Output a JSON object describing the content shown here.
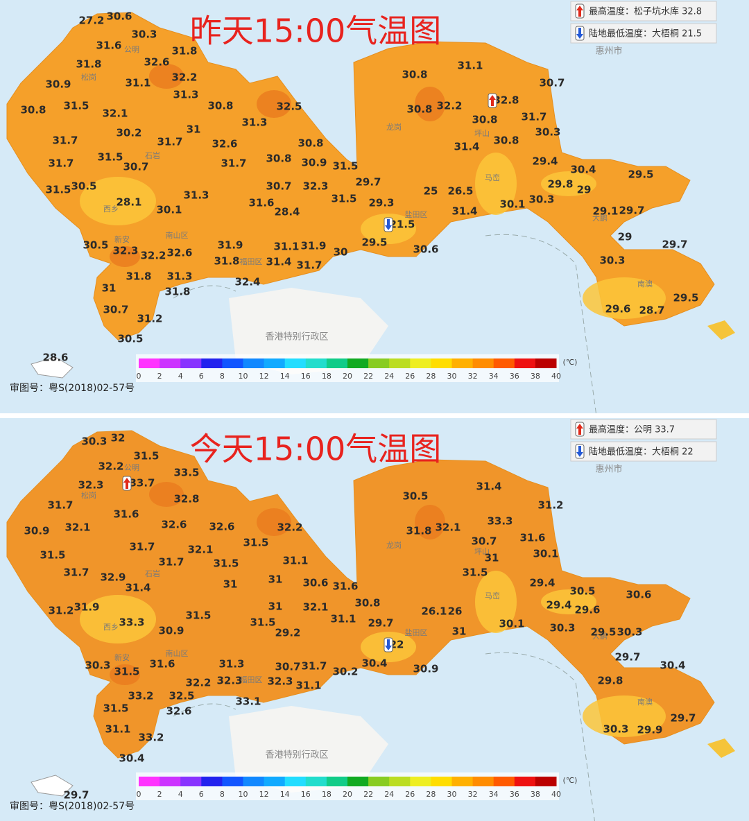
{
  "panels": [
    {
      "title": "昨天15:00气温图",
      "max_label": "最高温度：松子坑水库 32.8",
      "min_label": "陆地最低温度：大梧桐 21.5",
      "readings": [
        27.2,
        30.6,
        30.3,
        31.6,
        31.8,
        31.8,
        32.6,
        32.2,
        31.1,
        31.3,
        30.9,
        30.8,
        31.5,
        32.1,
        30.8,
        32.5,
        31.3,
        31,
        30.2,
        31.7,
        31.7,
        32.6,
        30.8,
        31.5,
        30.7,
        31.7,
        31.7,
        30.8,
        30.9,
        31.5,
        31.5,
        30.5,
        28.1,
        31.3,
        30.7,
        32.3,
        29.7,
        29.3,
        31.5,
        30.1,
        31.6,
        28.4,
        30.5,
        32.3,
        32.2,
        32.6,
        31.9,
        31.1,
        31.9,
        30,
        29.5,
        21.5,
        30.6,
        31.8,
        31.4,
        31.7,
        31.8,
        31.3,
        31,
        31.8,
        32.4,
        30.7,
        31.2,
        30.5,
        28.6,
        30.8,
        31.1,
        32.8,
        30.7,
        30.8,
        32.2,
        30.8,
        31.7,
        30.3,
        31.4,
        30.8,
        29.4,
        30.4,
        29.5,
        29.8,
        29,
        25,
        26.5,
        31.4,
        30.1,
        30.3,
        29.1,
        29.7,
        29,
        29.7,
        30.3,
        29.6,
        28.7,
        29.5
      ]
    },
    {
      "title": "今天15:00气温图",
      "max_label": "最高温度：公明 33.7",
      "min_label": "陆地最低温度：大梧桐 22",
      "readings": [
        30.3,
        32,
        31.5,
        33.5,
        32.2,
        32.3,
        33.7,
        32.8,
        31.7,
        31.6,
        32.1,
        32.6,
        32.6,
        32.2,
        30.9,
        31.7,
        32.1,
        31.5,
        31.5,
        31.7,
        32.9,
        31.7,
        31.5,
        31.1,
        31,
        31,
        30.6,
        31.6,
        31.4,
        31.2,
        31.9,
        33.3,
        31.5,
        31,
        32.1,
        31.1,
        31.5,
        30.9,
        29.2,
        30.3,
        31.5,
        31.6,
        31.3,
        30.7,
        31.7,
        30.2,
        32.2,
        32.3,
        32.3,
        31.1,
        32.5,
        33.2,
        33.1,
        31.5,
        32.6,
        31.1,
        33.2,
        30.4,
        29.7,
        30.5,
        31.4,
        31.2,
        33.3,
        31.8,
        32.1,
        30.7,
        31.6,
        31,
        30.1,
        31.5,
        29.4,
        30.5,
        30.6,
        29.4,
        29.6,
        26.1,
        26,
        31,
        30.1,
        30.8,
        29.7,
        22,
        30.4,
        30.9,
        30.3,
        29.5,
        30.3,
        29.7,
        30.4,
        29.8,
        30.3,
        29.9,
        29.7
      ]
    }
  ],
  "districts": [
    "公明",
    "松岗",
    "西乡",
    "南山区",
    "新安",
    "福田区",
    "龙岗",
    "坪山",
    "盐田区",
    "马峦",
    "南澳",
    "大鹏",
    "石岩"
  ],
  "huizhou": "惠州市",
  "hongkong": "香港特别行政区",
  "map_number": "审图号：粤S(2018)02-57号",
  "legend": {
    "unit": "(℃)",
    "ticks": [
      0,
      2,
      4,
      6,
      8,
      10,
      12,
      14,
      16,
      18,
      20,
      22,
      24,
      26,
      28,
      30,
      32,
      34,
      36,
      38,
      40
    ],
    "colors": [
      "#ff33ff",
      "#cc33ff",
      "#8833ff",
      "#2222ee",
      "#1155ff",
      "#1188ff",
      "#11aaff",
      "#22ddff",
      "#22ddcc",
      "#11cc88",
      "#11aa22",
      "#88cc22",
      "#bbdd22",
      "#eeee22",
      "#ffdd00",
      "#ffb000",
      "#ff8c00",
      "#ff5a00",
      "#ee1111",
      "#bb0000"
    ]
  }
}
